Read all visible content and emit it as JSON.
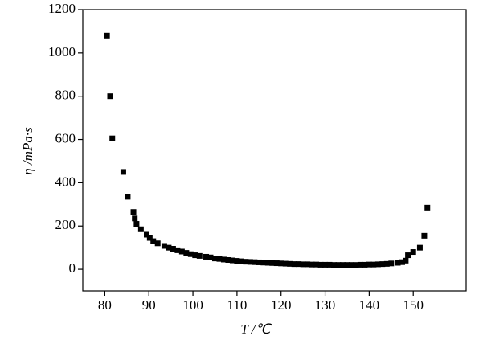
{
  "chart_data": {
    "type": "scatter",
    "x_label": "T /℃",
    "y_label": "η /mPa·s",
    "color": "#000000",
    "marker": "square",
    "xlim": [
      75,
      162
    ],
    "ylim": [
      -100,
      1200
    ],
    "xticks": [
      80,
      90,
      100,
      110,
      120,
      130,
      140,
      150
    ],
    "yticks": [
      0,
      200,
      400,
      600,
      800,
      1000,
      1200
    ],
    "grid": false,
    "x": [
      80.5,
      81.2,
      81.7,
      84.2,
      85.2,
      86.5,
      86.8,
      87.2,
      88.2,
      89.5,
      90.2,
      91,
      92,
      93.5,
      94.5,
      95.5,
      96.5,
      97.5,
      98.5,
      99.5,
      100.5,
      101.5,
      103,
      104,
      105,
      106,
      107,
      108,
      109,
      110,
      111,
      112,
      113,
      114,
      115,
      116,
      117,
      118,
      119,
      120,
      121,
      122,
      123,
      124,
      125,
      126,
      127,
      128,
      129,
      130,
      131,
      132,
      133,
      134,
      135,
      136,
      137,
      138,
      139,
      140,
      141,
      142,
      143,
      144,
      145,
      146.5,
      147.5,
      148.3,
      148.8,
      150,
      151.5,
      152.5,
      153.2
    ],
    "values": [
      1080,
      800,
      605,
      450,
      335,
      265,
      235,
      210,
      185,
      160,
      145,
      130,
      120,
      108,
      100,
      95,
      88,
      82,
      76,
      70,
      65,
      62,
      58,
      55,
      50,
      48,
      45,
      43,
      41,
      39,
      37,
      35,
      34,
      33,
      32,
      31,
      30,
      29,
      28,
      27,
      26,
      25,
      24,
      24,
      23,
      23,
      22,
      22,
      21,
      21,
      21,
      20,
      20,
      20,
      20,
      20,
      20,
      21,
      21,
      22,
      22,
      23,
      24,
      25,
      27,
      30,
      33,
      40,
      65,
      80,
      100,
      155,
      285
    ]
  }
}
